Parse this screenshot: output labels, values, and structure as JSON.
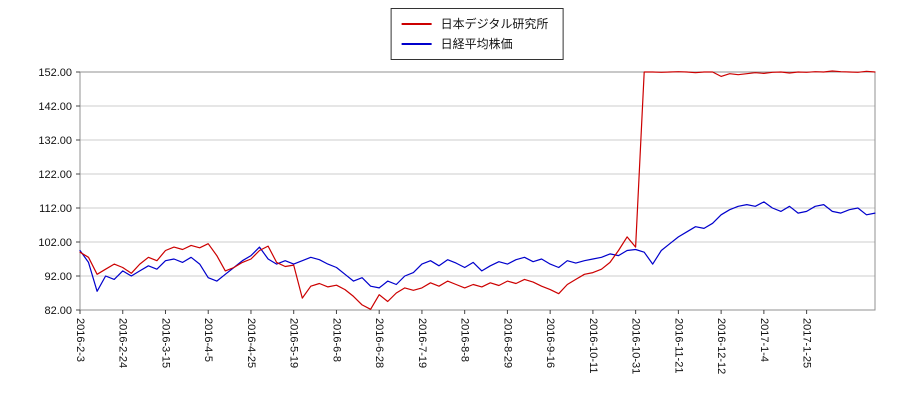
{
  "chart": {
    "background": "#ffffff",
    "plot_border_color": "#909090",
    "grid_color": "#cccccc",
    "axis_text_color": "#111111",
    "legend_border_color": "#333333"
  },
  "chart_data": {
    "type": "line",
    "title": "",
    "xlabel": "",
    "ylabel": "",
    "grid": "horizontal",
    "legend_position": "top-center",
    "ylim": [
      82,
      152
    ],
    "y_ticks": [
      82,
      92,
      102,
      112,
      122,
      132,
      142,
      152
    ],
    "y_tick_labels": [
      "82.00",
      "92.00",
      "102.00",
      "112.00",
      "122.00",
      "132.00",
      "142.00",
      "152.00"
    ],
    "x_tick_labels": [
      "2016-2-3",
      "2016-2-24",
      "2016-3-15",
      "2016-4-5",
      "2016-4-25",
      "2016-5-19",
      "2016-6-8",
      "2016-6-28",
      "2016-7-19",
      "2016-8-8",
      "2016-8-29",
      "2016-9-16",
      "2016-10-11",
      "2016-10-31",
      "2016-11-21",
      "2016-12-12",
      "2017-1-4",
      "2017-1-25"
    ],
    "x_tick_indices": [
      0,
      5,
      10,
      15,
      20,
      25,
      30,
      35,
      40,
      45,
      50,
      55,
      60,
      65,
      70,
      75,
      80,
      85
    ],
    "series": [
      {
        "name": "日本デジタル研究所",
        "color": "#cc0000",
        "values": [
          99.0,
          97.5,
          92.5,
          94.0,
          95.5,
          94.5,
          92.8,
          95.5,
          97.5,
          96.5,
          99.5,
          100.5,
          99.8,
          101.0,
          100.3,
          101.5,
          98.0,
          93.5,
          94.5,
          96.0,
          97.0,
          99.5,
          100.8,
          96.0,
          94.8,
          95.2,
          85.5,
          89.0,
          89.8,
          88.8,
          89.3,
          88.0,
          86.0,
          83.5,
          82.2,
          86.5,
          84.5,
          87.0,
          88.5,
          87.8,
          88.5,
          90.0,
          89.0,
          90.5,
          89.5,
          88.5,
          89.5,
          88.8,
          90.0,
          89.2,
          90.5,
          89.8,
          91.0,
          90.2,
          89.0,
          88.0,
          86.8,
          89.5,
          91.0,
          92.5,
          93.0,
          94.0,
          96.0,
          99.5,
          103.5,
          100.5,
          152.0,
          152.0,
          151.9,
          152.0,
          152.1,
          152.0,
          151.8,
          152.0,
          152.0,
          150.7,
          151.5,
          151.2,
          151.5,
          151.8,
          151.6,
          151.9,
          152.0,
          151.7,
          152.0,
          151.9,
          152.1,
          152.0,
          152.3,
          152.1,
          152.0,
          151.9,
          152.2,
          152.0
        ]
      },
      {
        "name": "日経平均株価",
        "color": "#0000cc",
        "values": [
          99.5,
          96.0,
          87.5,
          92.0,
          91.0,
          93.5,
          92.0,
          93.5,
          95.0,
          94.0,
          96.5,
          97.0,
          96.0,
          97.5,
          95.5,
          91.5,
          90.5,
          92.5,
          94.5,
          96.5,
          98.0,
          100.5,
          97.0,
          95.5,
          96.5,
          95.5,
          96.5,
          97.5,
          96.8,
          95.5,
          94.5,
          92.5,
          90.5,
          91.5,
          89.0,
          88.5,
          90.5,
          89.5,
          92.0,
          93.0,
          95.5,
          96.5,
          95.0,
          96.8,
          95.8,
          94.5,
          96.0,
          93.5,
          95.0,
          96.2,
          95.5,
          96.8,
          97.5,
          96.2,
          97.0,
          95.5,
          94.5,
          96.5,
          95.8,
          96.5,
          97.0,
          97.5,
          98.5,
          98.0,
          99.5,
          99.8,
          99.0,
          95.5,
          99.5,
          101.5,
          103.5,
          105.0,
          106.5,
          106.0,
          107.5,
          110.0,
          111.5,
          112.5,
          113.0,
          112.5,
          113.8,
          112.0,
          111.0,
          112.5,
          110.5,
          111.0,
          112.5,
          113.0,
          111.0,
          110.5,
          111.5,
          112.0,
          110.0,
          110.5
        ]
      }
    ]
  }
}
